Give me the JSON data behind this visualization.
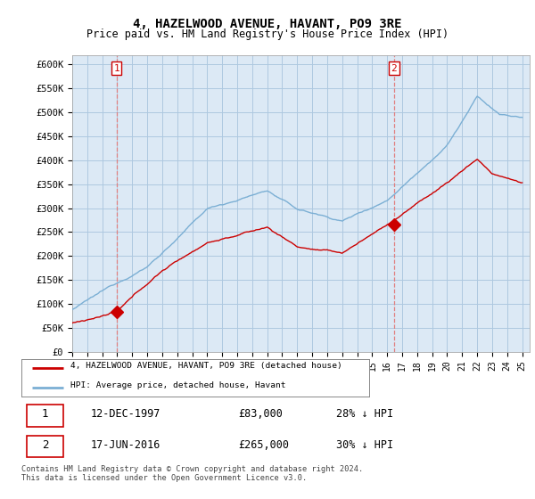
{
  "title": "4, HAZELWOOD AVENUE, HAVANT, PO9 3RE",
  "subtitle": "Price paid vs. HM Land Registry's House Price Index (HPI)",
  "ylim": [
    0,
    620000
  ],
  "yticks": [
    0,
    50000,
    100000,
    150000,
    200000,
    250000,
    300000,
    350000,
    400000,
    450000,
    500000,
    550000,
    600000
  ],
  "ytick_labels": [
    "£0",
    "£50K",
    "£100K",
    "£150K",
    "£200K",
    "£250K",
    "£300K",
    "£350K",
    "£400K",
    "£450K",
    "£500K",
    "£550K",
    "£600K"
  ],
  "hpi_color": "#7bafd4",
  "price_color": "#cc0000",
  "sale1_date": 1997.95,
  "sale1_price": 83000,
  "sale2_date": 2016.46,
  "sale2_price": 265000,
  "legend_entry1": "4, HAZELWOOD AVENUE, HAVANT, PO9 3RE (detached house)",
  "legend_entry2": "HPI: Average price, detached house, Havant",
  "table_row1": [
    "1",
    "12-DEC-1997",
    "£83,000",
    "28% ↓ HPI"
  ],
  "table_row2": [
    "2",
    "17-JUN-2016",
    "£265,000",
    "30% ↓ HPI"
  ],
  "footer": "Contains HM Land Registry data © Crown copyright and database right 2024.\nThis data is licensed under the Open Government Licence v3.0.",
  "bg_color": "#dce9f5",
  "plot_bg": "#dce9f5",
  "grid_color": "#aec8e0",
  "vline_color": "#e08080"
}
